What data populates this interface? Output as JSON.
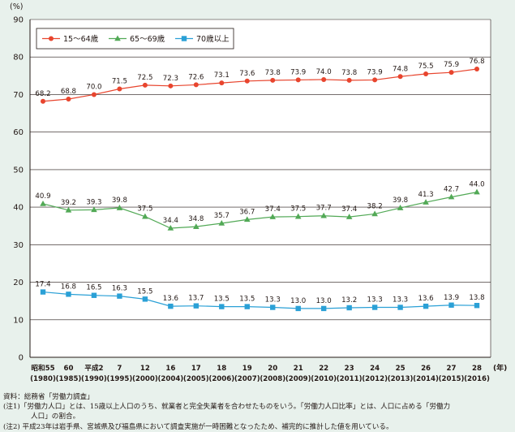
{
  "chart_data": {
    "type": "line",
    "y_unit": "(%)",
    "x_unit": "(年)",
    "ylim": [
      0,
      90
    ],
    "y_ticks": [
      0,
      10,
      20,
      30,
      40,
      50,
      60,
      70,
      80,
      90
    ],
    "grid": true,
    "legend_position": "top-left",
    "x_era_labels": [
      "昭和55",
      "60",
      "平成2",
      "7",
      "12",
      "16",
      "17",
      "18",
      "19",
      "20",
      "21",
      "22",
      "23",
      "24",
      "25",
      "26",
      "27",
      "28"
    ],
    "x_year_labels": [
      "(1980)",
      "(1985)",
      "(1990)",
      "(1995)",
      "(2000)",
      "(2004)",
      "(2005)",
      "(2006)",
      "(2007)",
      "(2008)",
      "(2009)",
      "(2010)",
      "(2011)",
      "(2012)",
      "(2013)",
      "(2014)",
      "(2015)",
      "(2016)"
    ],
    "series": [
      {
        "name": "15～64歳",
        "color": "#e8452e",
        "marker": "circle",
        "values": [
          68.2,
          68.8,
          70.0,
          71.5,
          72.5,
          72.3,
          72.6,
          73.1,
          73.6,
          73.8,
          73.9,
          74.0,
          73.8,
          73.9,
          74.8,
          75.5,
          75.9,
          76.8
        ]
      },
      {
        "name": "65～69歳",
        "color": "#52a956",
        "marker": "triangle",
        "values": [
          40.9,
          39.2,
          39.3,
          39.8,
          37.5,
          34.4,
          34.8,
          35.7,
          36.7,
          37.4,
          37.5,
          37.7,
          37.4,
          38.2,
          39.8,
          41.3,
          42.7,
          44.0
        ]
      },
      {
        "name": "70歳以上",
        "color": "#2aa0d6",
        "marker": "square",
        "values": [
          17.4,
          16.8,
          16.5,
          16.3,
          15.5,
          13.6,
          13.7,
          13.5,
          13.5,
          13.3,
          13.0,
          13.0,
          13.2,
          13.3,
          13.3,
          13.6,
          13.9,
          13.8
        ]
      }
    ]
  },
  "notes": {
    "source": "資料：総務省「労働力調査」",
    "note1_line1": "(注1)「労働力人口」とは、15歳以上人口のうち、就業者と完全失業者を合わせたものをいう。「労働力人口比率」とは、人口に占める「労働力",
    "note1_line2": "人口」の割合。",
    "note2": "(注2) 平成23年は岩手県、宮城県及び福島県において調査実施が一時困難となったため、補完的に推計した値を用いている。"
  }
}
